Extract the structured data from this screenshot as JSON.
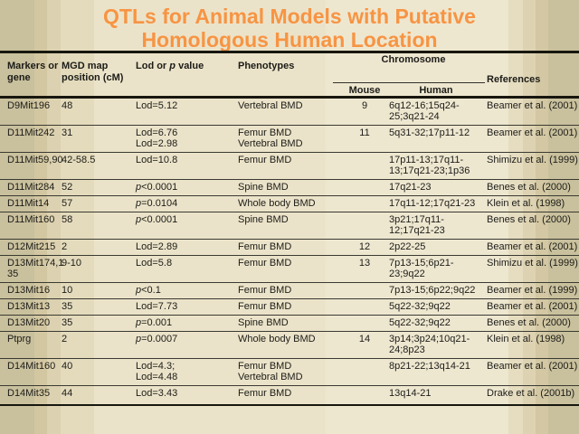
{
  "slide": {
    "title": "QTLs for Animal Models with Putative Homologous Human Location",
    "title_color": "#f79443",
    "text_color": "#1c1c18",
    "rule_color": "#17170f",
    "background_base": "#ebe3c9"
  },
  "table": {
    "headers": {
      "markers": "Markers or gene",
      "mgd": "MGD map position (cM)",
      "lod": "Lod or p value",
      "phenotypes": "Phenotypes",
      "chromosome": "Chromosome",
      "mouse": "Mouse",
      "human": "Human",
      "references": "References"
    },
    "rows": [
      {
        "gene": [
          "D9Mit196"
        ],
        "mgd": "48",
        "lod": [
          "Lod=5.12"
        ],
        "phenotypes": [
          "Vertebral BMD"
        ],
        "mouse": "9",
        "human": [
          "6q12-16;15q24-",
          "25;3q21-24"
        ],
        "reference": "Beamer et al. (2001)"
      },
      {
        "gene": [
          "D11Mit242"
        ],
        "mgd": "31",
        "lod": [
          "Lod=6.76",
          "Lod=2.98"
        ],
        "phenotypes": [
          "Femur BMD",
          "Vertebral BMD"
        ],
        "mouse": "11",
        "human": [
          "5q31-32;17p11-12"
        ],
        "reference": "Beamer et al. (2001)"
      },
      {
        "gene": [
          "D11Mit59,90"
        ],
        "mgd": "42-58.5",
        "lod": [
          "Lod=10.8"
        ],
        "phenotypes": [
          "Femur BMD"
        ],
        "mouse": "",
        "human": [
          "17p11-13;17q11-",
          "13;17q21-23;1p36"
        ],
        "reference": "Shimizu et al. (1999)"
      },
      {
        "gene": [
          "D11Mit284"
        ],
        "mgd": "52",
        "lod": [
          "p<0.0001"
        ],
        "phenotypes": [
          "Spine BMD"
        ],
        "mouse": "",
        "human": [
          "17q21-23"
        ],
        "reference": "Benes et al. (2000)"
      },
      {
        "gene": [
          "D11Mit14"
        ],
        "mgd": "57",
        "lod": [
          "p=0.0104"
        ],
        "phenotypes": [
          "Whole body BMD"
        ],
        "mouse": "",
        "human": [
          "17q11-12;17q21-23"
        ],
        "reference": "Klein et al. (1998)"
      },
      {
        "gene": [
          "D11Mit160"
        ],
        "mgd": "58",
        "lod": [
          "p<0.0001"
        ],
        "phenotypes": [
          "Spine BMD"
        ],
        "mouse": "",
        "human": [
          "3p21;17q11-",
          "12;17q21-23"
        ],
        "reference": "Benes et al. (2000)"
      },
      {
        "gene": [
          "D12Mit215"
        ],
        "mgd": "2",
        "lod": [
          "Lod=2.89"
        ],
        "phenotypes": [
          "Femur BMD"
        ],
        "mouse": "12",
        "human": [
          "2p22-25"
        ],
        "reference": "Beamer et al. (2001)"
      },
      {
        "gene": [
          "D13Mit174,1",
          "35"
        ],
        "mgd": "9-10",
        "lod": [
          "Lod=5.8"
        ],
        "phenotypes": [
          "Femur BMD"
        ],
        "mouse": "13",
        "human": [
          "7p13-15;6p21-",
          "23;9q22"
        ],
        "reference": "Shimizu et al. (1999)"
      },
      {
        "gene": [
          "D13Mit16"
        ],
        "mgd": "10",
        "lod": [
          "p<0.1"
        ],
        "phenotypes": [
          "Femur BMD"
        ],
        "mouse": "",
        "human": [
          "7p13-15;6p22;9q22"
        ],
        "reference": "Beamer et al. (1999)"
      },
      {
        "gene": [
          "D13Mit13"
        ],
        "mgd": "35",
        "lod": [
          "Lod=7.73"
        ],
        "phenotypes": [
          "Femur BMD"
        ],
        "mouse": "",
        "human": [
          "5q22-32;9q22"
        ],
        "reference": "Beamer et al. (2001)"
      },
      {
        "gene": [
          "D13Mit20"
        ],
        "mgd": "35",
        "lod": [
          "p=0.001"
        ],
        "phenotypes": [
          "Spine BMD"
        ],
        "mouse": "",
        "human": [
          "5q22-32;9q22"
        ],
        "reference": "Benes et al. (2000)"
      },
      {
        "gene": [
          "Ptprg"
        ],
        "mgd": "2",
        "lod": [
          "p=0.0007"
        ],
        "phenotypes": [
          "Whole body BMD"
        ],
        "mouse": "14",
        "human": [
          "3p14;3p24;10q21-",
          "24;8p23"
        ],
        "reference": "Klein et al. (1998)"
      },
      {
        "gene": [
          "D14Mit160"
        ],
        "mgd": "40",
        "lod": [
          "Lod=4.3;",
          "Lod=4.48"
        ],
        "phenotypes": [
          "Femur BMD",
          "Vertebral BMD"
        ],
        "mouse": "",
        "human": [
          "8p21-22;13q14-21"
        ],
        "reference": "Beamer et al. (2001)"
      },
      {
        "gene": [
          "D14Mit35"
        ],
        "mgd": "44",
        "lod": [
          "Lod=3.43"
        ],
        "phenotypes": [
          "Femur BMD"
        ],
        "mouse": "",
        "human": [
          "13q14-21"
        ],
        "reference": "Drake et al. (2001b)"
      }
    ]
  }
}
